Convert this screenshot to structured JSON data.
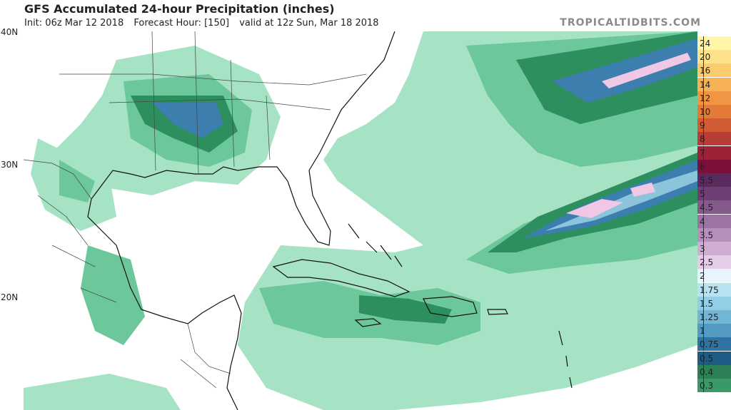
{
  "header": {
    "title": "GFS Accumulated 24-hour Precipitation (inches)",
    "init": "Init: 06z Mar 12 2018",
    "forecast_hour": "Forecast Hour: [150]",
    "valid": "valid at 12z Sun, Mar 18 2018",
    "brand": "TROPICALTIDBITS.COM"
  },
  "map": {
    "lat_labels": [
      "40N",
      "30N",
      "20N"
    ],
    "colors": {
      "light_green": "#a6e3c4",
      "mid_green": "#6cc89a",
      "dark_green": "#2e8f5e",
      "steel_blue": "#3c7fae",
      "light_blue": "#8cc4dc",
      "pink": "#f0c8e6",
      "coast": "#111111",
      "border": "#444444"
    }
  },
  "colorbar": {
    "levels": [
      {
        "label": "24",
        "color": "#fff6a8"
      },
      {
        "label": "20",
        "color": "#fde28c"
      },
      {
        "label": "16",
        "color": "#fbcb6c"
      },
      {
        "label": "14",
        "color": "#f7b255"
      },
      {
        "label": "12",
        "color": "#f09544"
      },
      {
        "label": "10",
        "color": "#e47a38"
      },
      {
        "label": "9",
        "color": "#d15c33"
      },
      {
        "label": "8",
        "color": "#b73d36"
      },
      {
        "label": "7",
        "color": "#9c2238"
      },
      {
        "label": "6",
        "color": "#7a0f3a"
      },
      {
        "label": "5.5",
        "color": "#5a2a5e"
      },
      {
        "label": "5",
        "color": "#6e3f74"
      },
      {
        "label": "4.5",
        "color": "#845a8c"
      },
      {
        "label": "4",
        "color": "#9b74a3"
      },
      {
        "label": "3.5",
        "color": "#b590bb"
      },
      {
        "label": "3",
        "color": "#cfaed2"
      },
      {
        "label": "2.5",
        "color": "#e6cde7"
      },
      {
        "label": "2",
        "color": "#e6f5fb"
      },
      {
        "label": "1.75",
        "color": "#b7e2f2"
      },
      {
        "label": "1.5",
        "color": "#93cde6"
      },
      {
        "label": "1.25",
        "color": "#72b6d7"
      },
      {
        "label": "1",
        "color": "#549bc4"
      },
      {
        "label": "0.75",
        "color": "#2f73a3"
      },
      {
        "label": "0.5",
        "color": "#1f5c85"
      },
      {
        "label": "0.4",
        "color": "#2b8055"
      },
      {
        "label": "0.3",
        "color": "#3a9a67"
      }
    ]
  }
}
